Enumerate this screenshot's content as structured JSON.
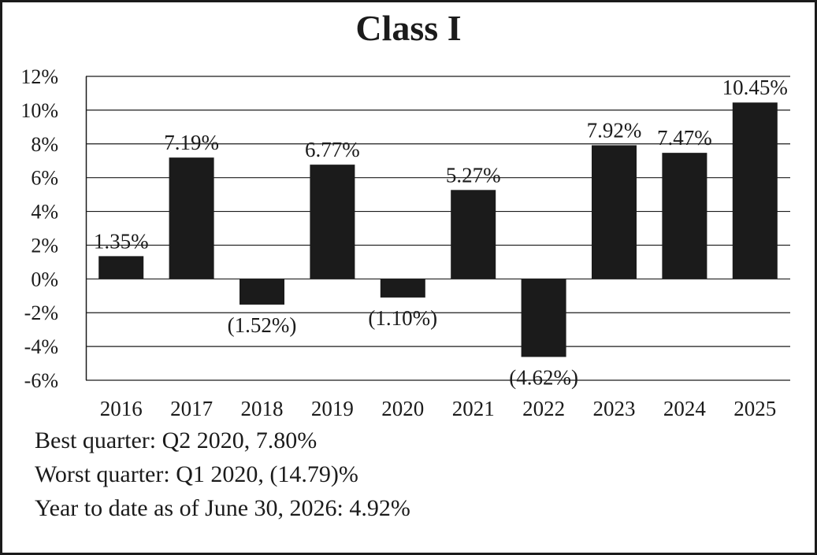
{
  "title": "Class I",
  "chart_data": {
    "type": "bar",
    "title": "Class I",
    "categories": [
      "2016",
      "2017",
      "2018",
      "2019",
      "2020",
      "2021",
      "2022",
      "2023",
      "2024",
      "2025"
    ],
    "values": [
      1.35,
      7.19,
      -1.52,
      6.77,
      -1.1,
      5.27,
      -4.62,
      7.92,
      7.47,
      10.45
    ],
    "data_labels": [
      "1.35%",
      "7.19%",
      "(1.52%)",
      "6.77%",
      "(1.10%)",
      "5.27%",
      "(4.62%)",
      "7.92%",
      "7.47%",
      "10.45%"
    ],
    "y_ticks": [
      -6,
      -4,
      -2,
      0,
      2,
      4,
      6,
      8,
      10,
      12
    ],
    "y_tick_labels": [
      "-6%",
      "-4%",
      "-2%",
      "0%",
      "2%",
      "4%",
      "6%",
      "8%",
      "10%",
      "12%"
    ],
    "ylim": [
      -6,
      12
    ],
    "grid": true,
    "bar_color": "#1b1b1b"
  },
  "notes": {
    "best_quarter": "Best quarter: Q2 2020, 7.80%",
    "worst_quarter": "Worst quarter: Q1 2020, (14.79)%",
    "ytd": "Year to date as of June 30, 2026: 4.92%"
  }
}
